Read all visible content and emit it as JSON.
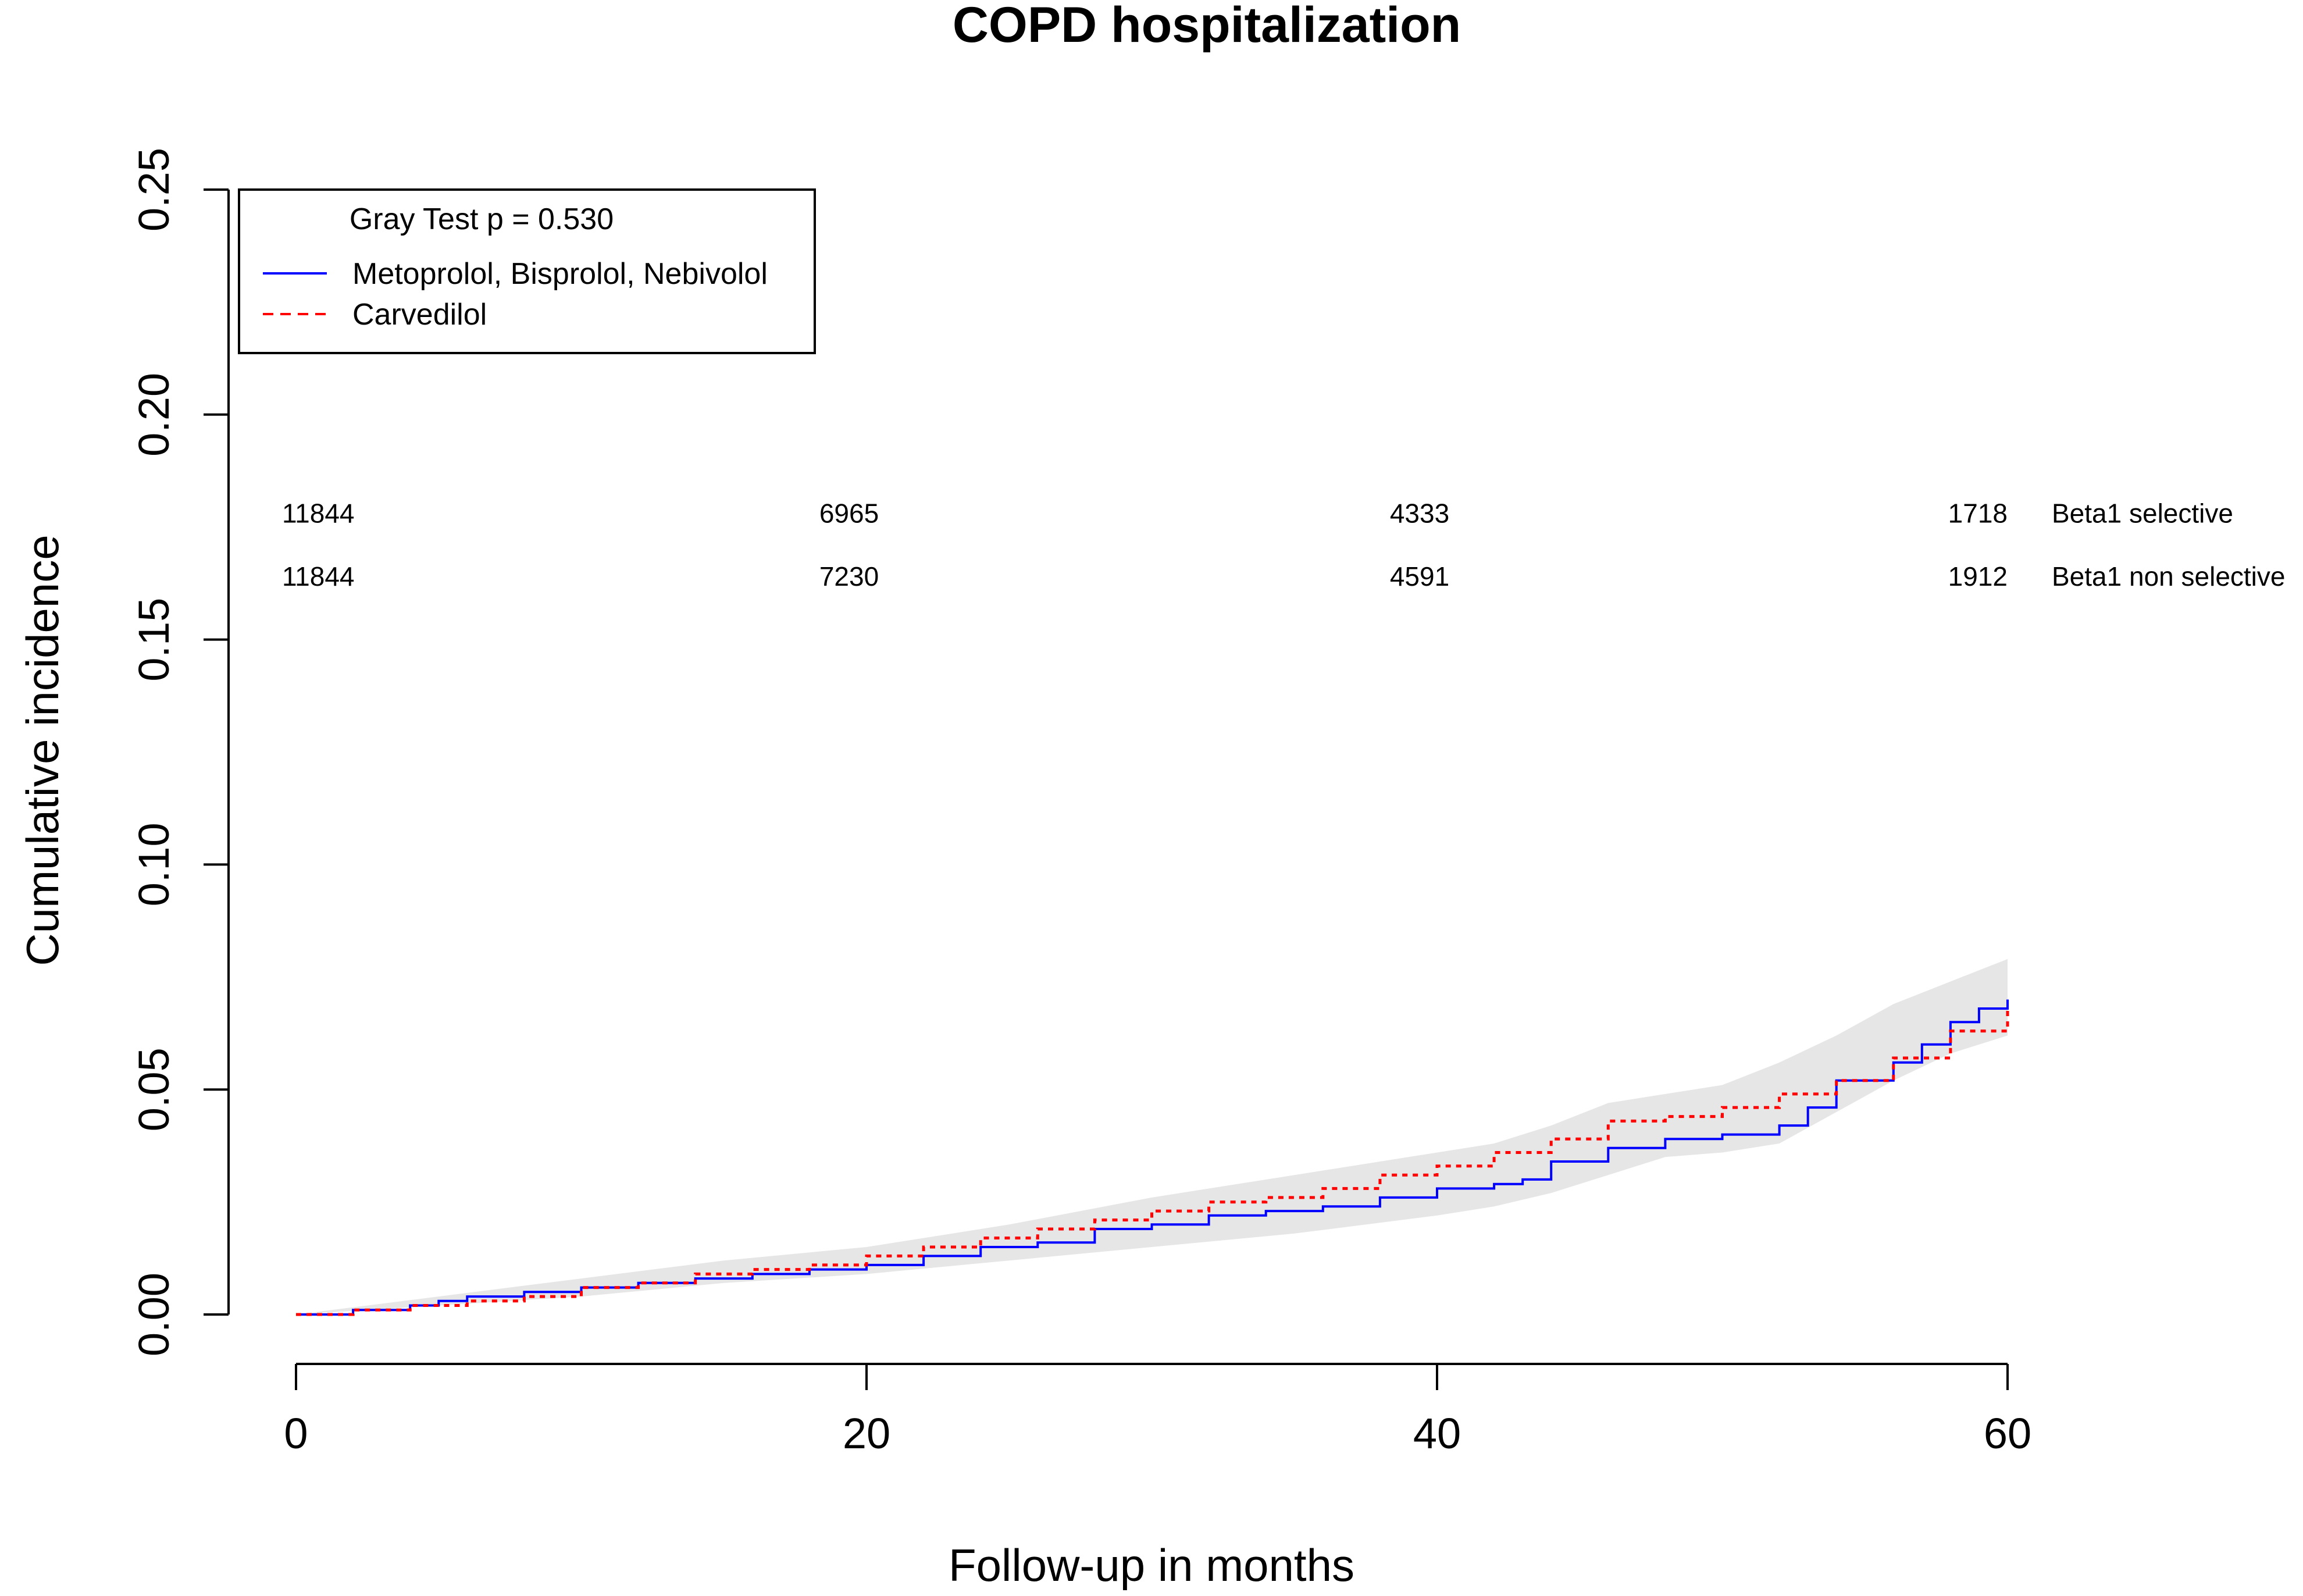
{
  "chart_data": {
    "type": "line",
    "title": "COPD hospitalization",
    "xlabel": "Follow-up in months",
    "ylabel": "Cumulative incidence",
    "xlim": [
      0,
      60
    ],
    "ylim": [
      0,
      0.25
    ],
    "x_ticks": [
      0,
      20,
      40,
      60
    ],
    "x_tick_labels": [
      "0",
      "20",
      "40",
      "60"
    ],
    "y_ticks": [
      0,
      0.05,
      0.1,
      0.15,
      0.2,
      0.25
    ],
    "y_tick_labels": [
      "0.00",
      "0.05",
      "0.10",
      "0.15",
      "0.20",
      "0.25"
    ],
    "legend": {
      "title": "Gray Test p = 0.530",
      "placement": "top-left",
      "entries": [
        {
          "label": "Metoprolol, Bisprolol, Nebivolol",
          "color": "#0000ff",
          "style": "solid"
        },
        {
          "label": "Carvedilol",
          "color": "#ff0000",
          "style": "dashed"
        }
      ]
    },
    "series": [
      {
        "name": "Metoprolol, Bisprolol, Nebivolol",
        "color": "#0000ff",
        "style": "solid",
        "x": [
          0,
          2,
          4,
          5,
          6,
          8,
          10,
          12,
          14,
          16,
          18,
          20,
          22,
          24,
          26,
          28,
          30,
          32,
          34,
          36,
          38,
          40,
          42,
          43,
          44,
          46,
          48,
          50,
          52,
          53,
          54,
          56,
          57,
          58,
          59,
          60
        ],
        "y": [
          0,
          0.001,
          0.002,
          0.003,
          0.004,
          0.005,
          0.006,
          0.007,
          0.008,
          0.009,
          0.01,
          0.011,
          0.013,
          0.015,
          0.016,
          0.019,
          0.02,
          0.022,
          0.023,
          0.024,
          0.026,
          0.028,
          0.029,
          0.03,
          0.034,
          0.037,
          0.039,
          0.04,
          0.042,
          0.046,
          0.052,
          0.056,
          0.06,
          0.065,
          0.068,
          0.07
        ]
      },
      {
        "name": "Carvedilol",
        "color": "#ff0000",
        "style": "dashed",
        "x": [
          0,
          2,
          4,
          6,
          8,
          10,
          12,
          14,
          16,
          18,
          20,
          22,
          24,
          26,
          28,
          30,
          32,
          34,
          36,
          38,
          40,
          42,
          44,
          46,
          48,
          50,
          52,
          54,
          56,
          58,
          60
        ],
        "y": [
          0,
          0.001,
          0.002,
          0.003,
          0.004,
          0.006,
          0.007,
          0.009,
          0.01,
          0.011,
          0.013,
          0.015,
          0.017,
          0.019,
          0.021,
          0.023,
          0.025,
          0.026,
          0.028,
          0.031,
          0.033,
          0.036,
          0.039,
          0.043,
          0.044,
          0.046,
          0.049,
          0.052,
          0.057,
          0.063,
          0.068
        ]
      }
    ],
    "confidence_band": {
      "color": "#e6e6e6",
      "x": [
        0,
        10,
        15,
        20,
        25,
        30,
        35,
        40,
        42,
        44,
        46,
        48,
        50,
        52,
        54,
        56,
        58,
        60
      ],
      "lower": [
        0,
        0.004,
        0.007,
        0.009,
        0.012,
        0.015,
        0.018,
        0.022,
        0.024,
        0.027,
        0.031,
        0.035,
        0.036,
        0.038,
        0.045,
        0.052,
        0.058,
        0.062
      ],
      "upper": [
        0,
        0.008,
        0.012,
        0.015,
        0.02,
        0.026,
        0.031,
        0.036,
        0.038,
        0.042,
        0.047,
        0.049,
        0.051,
        0.056,
        0.062,
        0.069,
        0.074,
        0.079
      ]
    },
    "risk_table": {
      "times": [
        0,
        20,
        40,
        60
      ],
      "rows": [
        {
          "label": "Beta1 selective",
          "counts": [
            "11844",
            "6965",
            "4333",
            "1718"
          ],
          "y": 0.176
        },
        {
          "label": "Beta1 non selective",
          "counts": [
            "11844",
            "7230",
            "4591",
            "1912"
          ],
          "y": 0.162
        }
      ]
    }
  }
}
